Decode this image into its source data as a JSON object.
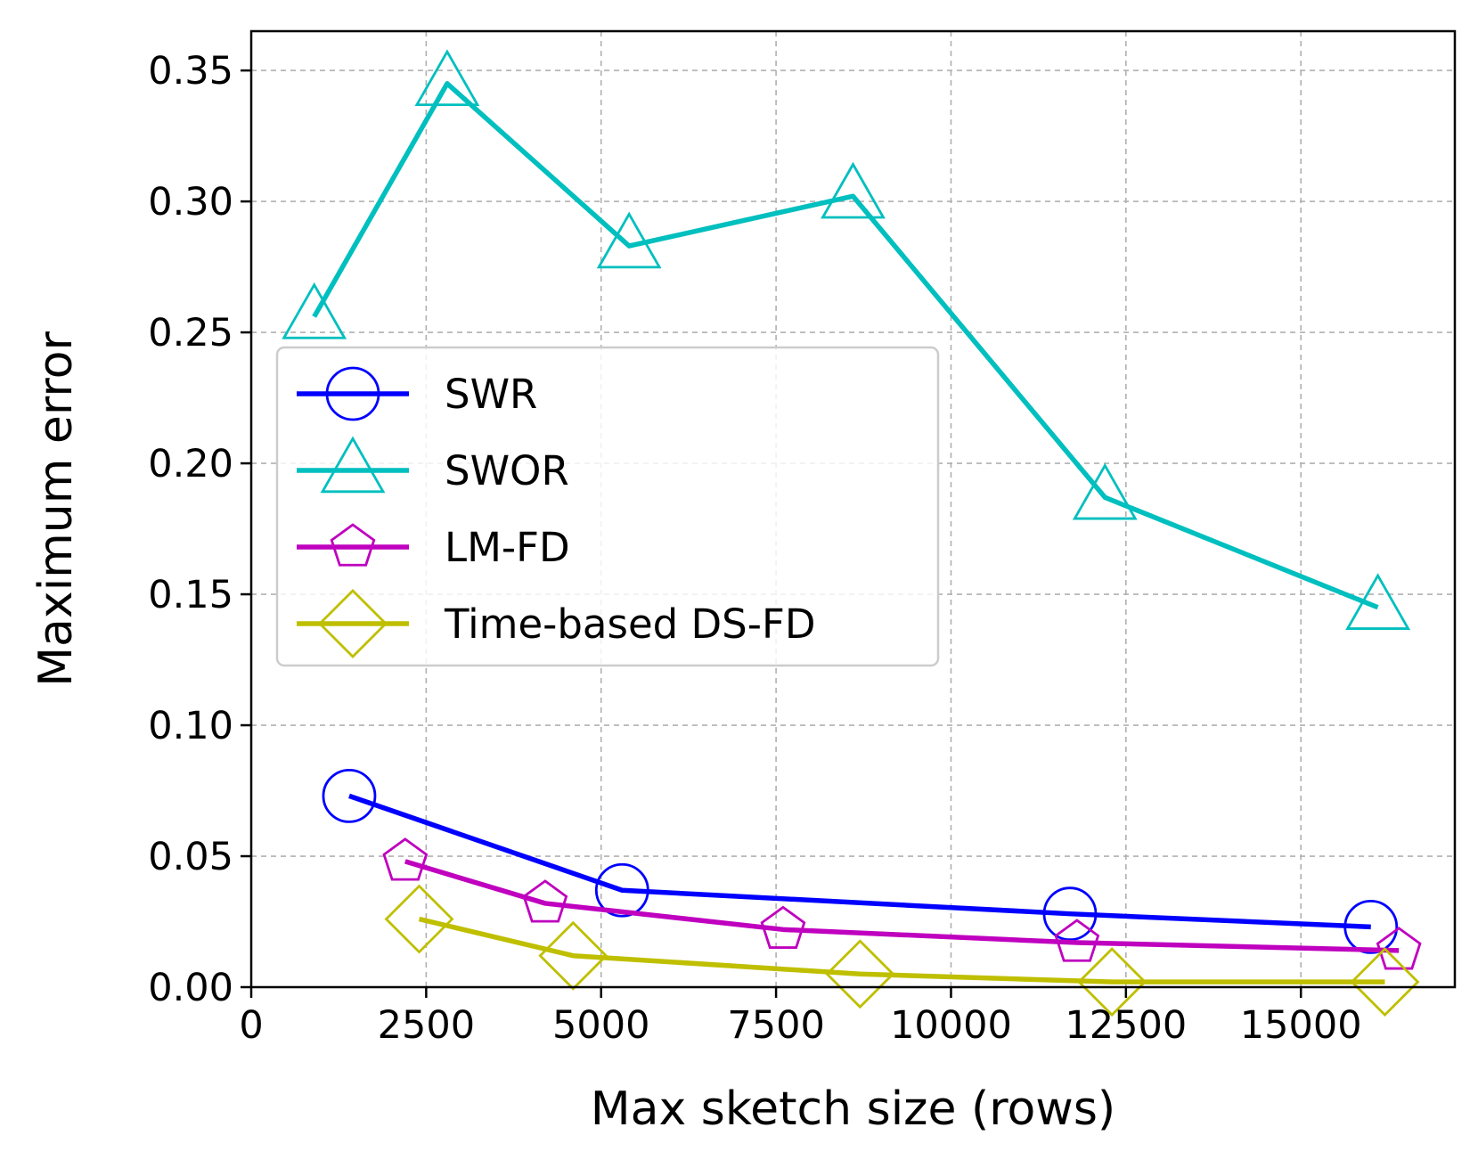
{
  "chart_data": {
    "type": "line",
    "title": "",
    "xlabel": "Max sketch size (rows)",
    "ylabel": "Maximum error",
    "xlim": [
      0,
      17200
    ],
    "ylim": [
      0,
      0.365
    ],
    "xticks": [
      0,
      2500,
      5000,
      7500,
      10000,
      12500,
      15000
    ],
    "xtick_labels": [
      "0",
      "2500",
      "5000",
      "7500",
      "10000",
      "12500",
      "15000"
    ],
    "yticks": [
      0.0,
      0.05,
      0.1,
      0.15,
      0.2,
      0.25,
      0.3,
      0.35
    ],
    "ytick_labels": [
      "0.00",
      "0.05",
      "0.10",
      "0.15",
      "0.20",
      "0.25",
      "0.30",
      "0.35"
    ],
    "grid": true,
    "legend_position": "center-left",
    "series": [
      {
        "name": "SWR",
        "color": "#0000ff",
        "marker": "circle",
        "x": [
          1400,
          5300,
          11700,
          16000
        ],
        "y": [
          0.073,
          0.037,
          0.028,
          0.023
        ]
      },
      {
        "name": "SWOR",
        "color": "#00bfbf",
        "marker": "triangle",
        "x": [
          900,
          2800,
          5400,
          8600,
          12200,
          16100
        ],
        "y": [
          0.256,
          0.345,
          0.283,
          0.302,
          0.187,
          0.145
        ]
      },
      {
        "name": "LM-FD",
        "color": "#bf00bf",
        "marker": "pentagon",
        "x": [
          2200,
          4200,
          7600,
          11800,
          16400
        ],
        "y": [
          0.048,
          0.032,
          0.022,
          0.017,
          0.014
        ]
      },
      {
        "name": "Time-based DS-FD",
        "color": "#bfbf00",
        "marker": "diamond",
        "x": [
          2400,
          4600,
          8700,
          12300,
          16200
        ],
        "y": [
          0.026,
          0.012,
          0.005,
          0.002,
          0.002
        ]
      }
    ]
  }
}
